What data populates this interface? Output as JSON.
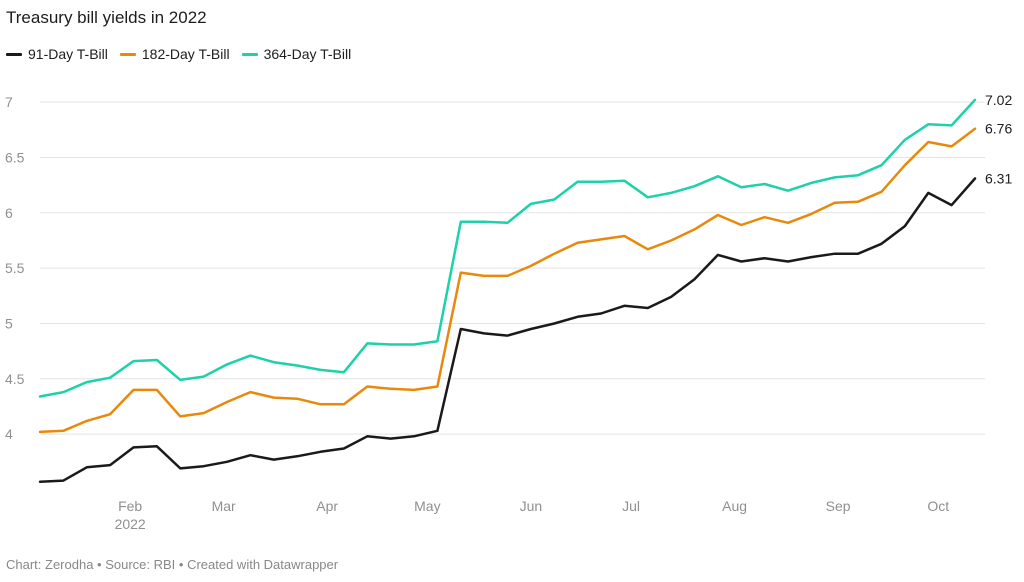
{
  "title": "Treasury bill yields in 2022",
  "footer": "Chart: Zerodha • Source: RBI • Created with Datawrapper",
  "chart_data": {
    "type": "line",
    "title": "Treasury bill yields in 2022",
    "xlabel": "",
    "ylabel": "",
    "ylim": [
      3.45,
      7.2
    ],
    "y_ticks": [
      4,
      4.5,
      5,
      5.5,
      6,
      6.5,
      7
    ],
    "y_tick_labels": [
      "4",
      "4.5",
      "5",
      "5.5",
      "6",
      "6.5",
      "7"
    ],
    "grid": true,
    "legend": "top-left",
    "x_ticks": [
      {
        "date": "2022-02-01",
        "label": "Feb",
        "sub": "2022"
      },
      {
        "date": "2022-03-01",
        "label": "Mar",
        "sub": ""
      },
      {
        "date": "2022-04-01",
        "label": "Apr",
        "sub": ""
      },
      {
        "date": "2022-05-01",
        "label": "May",
        "sub": ""
      },
      {
        "date": "2022-06-01",
        "label": "Jun",
        "sub": ""
      },
      {
        "date": "2022-07-01",
        "label": "Jul",
        "sub": ""
      },
      {
        "date": "2022-08-01",
        "label": "Aug",
        "sub": ""
      },
      {
        "date": "2022-09-01",
        "label": "Sep",
        "sub": ""
      },
      {
        "date": "2022-10-01",
        "label": "Oct",
        "sub": ""
      }
    ],
    "x": [
      "2022-01-05",
      "2022-01-12",
      "2022-01-19",
      "2022-01-26",
      "2022-02-02",
      "2022-02-09",
      "2022-02-16",
      "2022-02-23",
      "2022-03-02",
      "2022-03-09",
      "2022-03-16",
      "2022-03-23",
      "2022-03-30",
      "2022-04-06",
      "2022-04-13",
      "2022-04-20",
      "2022-04-27",
      "2022-05-04",
      "2022-05-11",
      "2022-05-18",
      "2022-05-25",
      "2022-06-01",
      "2022-06-08",
      "2022-06-15",
      "2022-06-22",
      "2022-06-29",
      "2022-07-06",
      "2022-07-13",
      "2022-07-20",
      "2022-07-27",
      "2022-08-03",
      "2022-08-10",
      "2022-08-17",
      "2022-08-24",
      "2022-08-31",
      "2022-09-07",
      "2022-09-14",
      "2022-09-21",
      "2022-09-28",
      "2022-10-05",
      "2022-10-12"
    ],
    "series": [
      {
        "name": "91-Day T-Bill",
        "color": "#1a1a1a",
        "end_label": "6.31",
        "values": [
          3.57,
          3.58,
          3.7,
          3.72,
          3.88,
          3.89,
          3.69,
          3.71,
          3.75,
          3.81,
          3.77,
          3.8,
          3.84,
          3.87,
          3.98,
          3.96,
          3.98,
          4.03,
          4.95,
          4.91,
          4.89,
          4.95,
          5.0,
          5.06,
          5.09,
          5.16,
          5.14,
          5.24,
          5.4,
          5.62,
          5.56,
          5.59,
          5.56,
          5.6,
          5.63,
          5.63,
          5.72,
          5.88,
          6.18,
          6.07,
          6.31
        ]
      },
      {
        "name": "182-Day T-Bill",
        "color": "#e8890c",
        "end_label": "6.76",
        "values": [
          4.02,
          4.03,
          4.12,
          4.18,
          4.4,
          4.4,
          4.16,
          4.19,
          4.29,
          4.38,
          4.33,
          4.32,
          4.27,
          4.27,
          4.43,
          4.41,
          4.4,
          4.43,
          5.46,
          5.43,
          5.43,
          5.52,
          5.63,
          5.73,
          5.76,
          5.79,
          5.67,
          5.75,
          5.85,
          5.98,
          5.89,
          5.96,
          5.91,
          5.99,
          6.09,
          6.1,
          6.19,
          6.43,
          6.64,
          6.6,
          6.76
        ]
      },
      {
        "name": "364-Day T-Bill",
        "color": "#1dd1a8",
        "end_label": "7.02",
        "values": [
          4.34,
          4.38,
          4.47,
          4.51,
          4.66,
          4.67,
          4.49,
          4.52,
          4.63,
          4.71,
          4.65,
          4.62,
          4.58,
          4.56,
          4.82,
          4.81,
          4.81,
          4.84,
          5.92,
          5.92,
          5.91,
          6.08,
          6.12,
          6.28,
          6.28,
          6.29,
          6.14,
          6.18,
          6.24,
          6.33,
          6.23,
          6.26,
          6.2,
          6.27,
          6.32,
          6.34,
          6.43,
          6.66,
          6.8,
          6.79,
          7.02
        ]
      }
    ]
  }
}
